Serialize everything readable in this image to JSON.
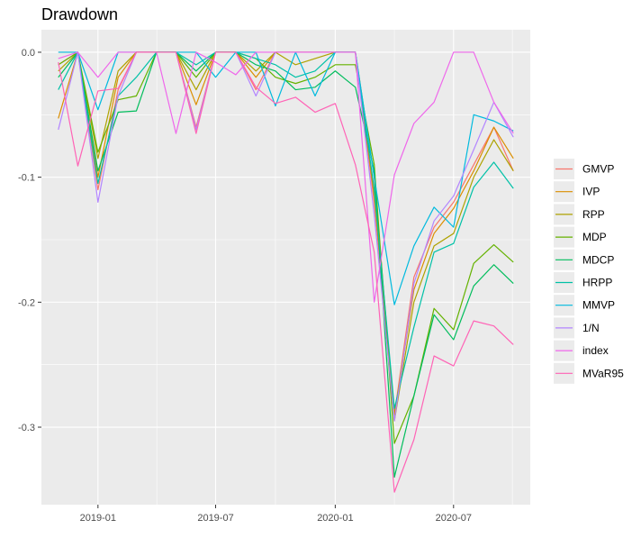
{
  "chart_data": {
    "type": "line",
    "title": "Drawdown",
    "xlabel": "",
    "ylabel": "",
    "x": [
      "2018-11-01",
      "2018-12-01",
      "2019-01-01",
      "2019-02-01",
      "2019-03-01",
      "2019-04-01",
      "2019-05-01",
      "2019-06-01",
      "2019-07-01",
      "2019-08-01",
      "2019-09-01",
      "2019-10-01",
      "2019-11-01",
      "2019-12-01",
      "2020-01-01",
      "2020-02-01",
      "2020-03-01",
      "2020-04-01",
      "2020-05-01",
      "2020-06-01",
      "2020-07-01",
      "2020-08-01",
      "2020-09-01",
      "2020-10-01"
    ],
    "x_ticks": [
      {
        "date": "2019-01-01",
        "label": "2019-01"
      },
      {
        "date": "2019-07-01",
        "label": "2019-07"
      },
      {
        "date": "2020-01-01",
        "label": "2020-01"
      },
      {
        "date": "2020-07-01",
        "label": "2020-07"
      }
    ],
    "xlim": [
      "2018-10-06",
      "2020-10-27"
    ],
    "ylim": [
      -0.362,
      0.018
    ],
    "y_ticks": [
      {
        "value": 0.0,
        "label": "0.0"
      },
      {
        "value": -0.1,
        "label": "-0.1"
      },
      {
        "value": -0.2,
        "label": "-0.2"
      },
      {
        "value": -0.3,
        "label": "-0.3"
      }
    ],
    "grid": true,
    "legend_position": "right",
    "background": "#ebebeb",
    "series": [
      {
        "name": "GMVP",
        "color": "#F8766D",
        "values": [
          -0.01,
          0.0,
          -0.11,
          -0.03,
          0.0,
          0.0,
          0.0,
          -0.06,
          0.0,
          0.0,
          -0.03,
          0.0,
          0.0,
          0.0,
          0.0,
          0.0,
          -0.12,
          -0.29,
          -0.18,
          -0.14,
          -0.12,
          -0.09,
          -0.06,
          -0.095
        ]
      },
      {
        "name": "IVP",
        "color": "#DB8E00",
        "values": [
          -0.053,
          0.0,
          -0.1,
          -0.02,
          0.0,
          0.0,
          0.0,
          -0.042,
          0.0,
          0.0,
          -0.02,
          0.0,
          0.0,
          0.0,
          0.0,
          0.0,
          -0.115,
          -0.29,
          -0.19,
          -0.145,
          -0.125,
          -0.095,
          -0.06,
          -0.085
        ]
      },
      {
        "name": "RPP",
        "color": "#AEA200",
        "values": [
          -0.015,
          0.0,
          -0.085,
          -0.015,
          0.0,
          0.0,
          0.0,
          -0.03,
          0.0,
          0.0,
          -0.015,
          0.0,
          -0.01,
          -0.005,
          0.0,
          0.0,
          -0.1,
          -0.295,
          -0.2,
          -0.155,
          -0.145,
          -0.1,
          -0.07,
          -0.095
        ]
      },
      {
        "name": "MDP",
        "color": "#64B200",
        "values": [
          -0.01,
          0.0,
          -0.08,
          -0.038,
          -0.035,
          0.0,
          0.0,
          -0.02,
          0.0,
          0.0,
          -0.005,
          -0.02,
          -0.025,
          -0.02,
          -0.01,
          -0.01,
          -0.09,
          -0.313,
          -0.275,
          -0.205,
          -0.222,
          -0.169,
          -0.154,
          -0.168
        ]
      },
      {
        "name": "MDCP",
        "color": "#00BD5C",
        "values": [
          -0.02,
          0.0,
          -0.095,
          -0.048,
          -0.047,
          0.0,
          0.0,
          -0.015,
          0.0,
          0.0,
          -0.01,
          -0.015,
          -0.03,
          -0.028,
          -0.015,
          -0.028,
          -0.095,
          -0.34,
          -0.275,
          -0.21,
          -0.23,
          -0.187,
          -0.17,
          -0.185
        ]
      },
      {
        "name": "HRPP",
        "color": "#00C1A7",
        "values": [
          -0.03,
          0.0,
          -0.105,
          -0.035,
          -0.02,
          0.0,
          0.0,
          -0.01,
          0.0,
          0.0,
          -0.005,
          -0.01,
          -0.02,
          -0.015,
          0.0,
          0.0,
          -0.11,
          -0.285,
          -0.22,
          -0.16,
          -0.153,
          -0.108,
          -0.088,
          -0.109
        ]
      },
      {
        "name": "MMVP",
        "color": "#00BADE",
        "values": [
          0.0,
          0.0,
          -0.046,
          0.0,
          0.0,
          0.0,
          0.0,
          0.0,
          -0.02,
          0.0,
          0.0,
          -0.043,
          0.0,
          -0.035,
          0.0,
          0.0,
          -0.1,
          -0.202,
          -0.155,
          -0.124,
          -0.14,
          -0.05,
          -0.055,
          -0.063
        ]
      },
      {
        "name": "1/N",
        "color": "#B385FF",
        "values": [
          -0.062,
          0.0,
          -0.12,
          -0.035,
          0.0,
          0.0,
          0.0,
          -0.062,
          0.0,
          0.0,
          -0.035,
          0.0,
          0.0,
          0.0,
          0.0,
          0.0,
          -0.13,
          -0.295,
          -0.185,
          -0.135,
          -0.115,
          -0.078,
          -0.04,
          -0.068
        ]
      },
      {
        "name": "index",
        "color": "#EF67EB",
        "values": [
          -0.005,
          0.0,
          -0.02,
          0.0,
          0.0,
          0.0,
          -0.065,
          0.0,
          -0.008,
          -0.018,
          0.0,
          0.0,
          0.0,
          0.0,
          0.0,
          0.0,
          -0.2,
          -0.098,
          -0.057,
          -0.04,
          0.0,
          0.0,
          -0.04,
          -0.065
        ]
      },
      {
        "name": "MVaR95",
        "color": "#FF63B6",
        "values": [
          -0.008,
          -0.091,
          -0.031,
          -0.029,
          0.0,
          0.0,
          0.0,
          -0.065,
          0.0,
          0.0,
          -0.028,
          -0.041,
          -0.036,
          -0.048,
          -0.041,
          -0.09,
          -0.16,
          -0.352,
          -0.31,
          -0.243,
          -0.251,
          -0.215,
          -0.219,
          -0.234
        ]
      }
    ]
  }
}
